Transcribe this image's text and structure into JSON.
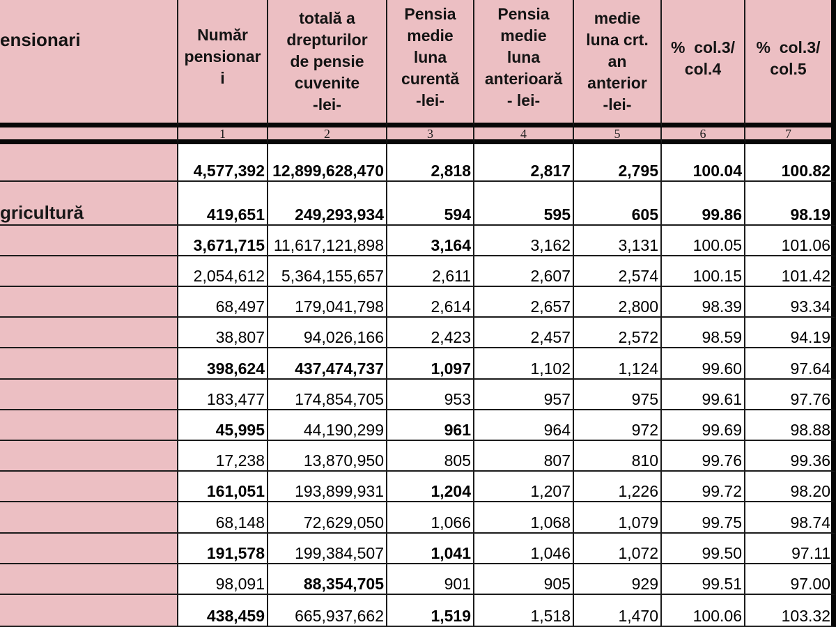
{
  "colors": {
    "header_pink": "#ecbfc3",
    "grid_line": "#1b1b1b",
    "thick_border": "#070707",
    "cell_white": "#ffffff"
  },
  "table": {
    "header": {
      "stub": "ensionari",
      "columns": [
        {
          "label": "Număr\npensionar\ni"
        },
        {
          "label": "totală a\ndrepturilor\nde pensie\ncuvenite\n-lei-"
        },
        {
          "label": "Pensia\nmedie\nluna\ncurentă\n-lei-"
        },
        {
          "label": "Pensia\nmedie\nluna\nanterioară\n- lei-"
        },
        {
          "label": "medie\nluna crt.\nan\nanterior\n-lei-"
        },
        {
          "label": "%  col.3/\ncol.4"
        },
        {
          "label": "%  col.3/\ncol.5"
        }
      ],
      "column_numbers": [
        "1",
        "2",
        "3",
        "4",
        "5",
        "6",
        "7"
      ]
    },
    "rows": [
      {
        "label": "",
        "cells": [
          {
            "v": "4,577,392",
            "b": true
          },
          {
            "v": "12,899,628,470",
            "b": true
          },
          {
            "v": "2,818",
            "b": true
          },
          {
            "v": "2,817",
            "b": true
          },
          {
            "v": "2,795",
            "b": true
          },
          {
            "v": "100.04",
            "b": true
          },
          {
            "v": "100.82",
            "b": true
          }
        ]
      },
      {
        "label": "gricultură",
        "cells": [
          {
            "v": "419,651",
            "b": true
          },
          {
            "v": "249,293,934",
            "b": true
          },
          {
            "v": "594",
            "b": true
          },
          {
            "v": "595",
            "b": true
          },
          {
            "v": "605",
            "b": true
          },
          {
            "v": "99.86",
            "b": true
          },
          {
            "v": "98.19",
            "b": true
          }
        ]
      },
      {
        "label": "",
        "cells": [
          {
            "v": "3,671,715",
            "b": true
          },
          {
            "v": "11,617,121,898",
            "b": false
          },
          {
            "v": "3,164",
            "b": true
          },
          {
            "v": "3,162",
            "b": false
          },
          {
            "v": "3,131",
            "b": false
          },
          {
            "v": "100.05",
            "b": false
          },
          {
            "v": "101.06",
            "b": false
          }
        ]
      },
      {
        "label": "",
        "cells": [
          {
            "v": "2,054,612",
            "b": false
          },
          {
            "v": "5,364,155,657",
            "b": false
          },
          {
            "v": "2,611",
            "b": false
          },
          {
            "v": "2,607",
            "b": false
          },
          {
            "v": "2,574",
            "b": false
          },
          {
            "v": "100.15",
            "b": false
          },
          {
            "v": "101.42",
            "b": false
          }
        ]
      },
      {
        "label": "",
        "cells": [
          {
            "v": "68,497",
            "b": false
          },
          {
            "v": "179,041,798",
            "b": false
          },
          {
            "v": "2,614",
            "b": false
          },
          {
            "v": "2,657",
            "b": false
          },
          {
            "v": "2,800",
            "b": false
          },
          {
            "v": "98.39",
            "b": false
          },
          {
            "v": "93.34",
            "b": false
          }
        ]
      },
      {
        "label": "",
        "cells": [
          {
            "v": "38,807",
            "b": false
          },
          {
            "v": "94,026,166",
            "b": false
          },
          {
            "v": "2,423",
            "b": false
          },
          {
            "v": "2,457",
            "b": false
          },
          {
            "v": "2,572",
            "b": false
          },
          {
            "v": "98.59",
            "b": false
          },
          {
            "v": "94.19",
            "b": false
          }
        ]
      },
      {
        "label": "",
        "cells": [
          {
            "v": "398,624",
            "b": true
          },
          {
            "v": "437,474,737",
            "b": true
          },
          {
            "v": "1,097",
            "b": true
          },
          {
            "v": "1,102",
            "b": false
          },
          {
            "v": "1,124",
            "b": false
          },
          {
            "v": "99.60",
            "b": false
          },
          {
            "v": "97.64",
            "b": false
          }
        ]
      },
      {
        "label": "",
        "cells": [
          {
            "v": "183,477",
            "b": false
          },
          {
            "v": "174,854,705",
            "b": false
          },
          {
            "v": "953",
            "b": false
          },
          {
            "v": "957",
            "b": false
          },
          {
            "v": "975",
            "b": false
          },
          {
            "v": "99.61",
            "b": false
          },
          {
            "v": "97.76",
            "b": false
          }
        ]
      },
      {
        "label": "",
        "cells": [
          {
            "v": "45,995",
            "b": true
          },
          {
            "v": "44,190,299",
            "b": false
          },
          {
            "v": "961",
            "b": true
          },
          {
            "v": "964",
            "b": false
          },
          {
            "v": "972",
            "b": false
          },
          {
            "v": "99.69",
            "b": false
          },
          {
            "v": "98.88",
            "b": false
          }
        ]
      },
      {
        "label": "",
        "cells": [
          {
            "v": "17,238",
            "b": false
          },
          {
            "v": "13,870,950",
            "b": false
          },
          {
            "v": "805",
            "b": false
          },
          {
            "v": "807",
            "b": false
          },
          {
            "v": "810",
            "b": false
          },
          {
            "v": "99.76",
            "b": false
          },
          {
            "v": "99.36",
            "b": false
          }
        ]
      },
      {
        "label": "",
        "cells": [
          {
            "v": "161,051",
            "b": true
          },
          {
            "v": "193,899,931",
            "b": false
          },
          {
            "v": "1,204",
            "b": true
          },
          {
            "v": "1,207",
            "b": false
          },
          {
            "v": "1,226",
            "b": false
          },
          {
            "v": "99.72",
            "b": false
          },
          {
            "v": "98.20",
            "b": false
          }
        ]
      },
      {
        "label": "",
        "cells": [
          {
            "v": "68,148",
            "b": false
          },
          {
            "v": "72,629,050",
            "b": false
          },
          {
            "v": "1,066",
            "b": false
          },
          {
            "v": "1,068",
            "b": false
          },
          {
            "v": "1,079",
            "b": false
          },
          {
            "v": "99.75",
            "b": false
          },
          {
            "v": "98.74",
            "b": false
          }
        ]
      },
      {
        "label": "",
        "cells": [
          {
            "v": "191,578",
            "b": true
          },
          {
            "v": "199,384,507",
            "b": false
          },
          {
            "v": "1,041",
            "b": true
          },
          {
            "v": "1,046",
            "b": false
          },
          {
            "v": "1,072",
            "b": false
          },
          {
            "v": "99.50",
            "b": false
          },
          {
            "v": "97.11",
            "b": false
          }
        ]
      },
      {
        "label": "",
        "cells": [
          {
            "v": "98,091",
            "b": false
          },
          {
            "v": "88,354,705",
            "b": true
          },
          {
            "v": "901",
            "b": false
          },
          {
            "v": "905",
            "b": false
          },
          {
            "v": "929",
            "b": false
          },
          {
            "v": "99.51",
            "b": false
          },
          {
            "v": "97.00",
            "b": false
          }
        ]
      },
      {
        "label": "",
        "cells": [
          {
            "v": "438,459",
            "b": true
          },
          {
            "v": "665,937,662",
            "b": false
          },
          {
            "v": "1,519",
            "b": true
          },
          {
            "v": "1,518",
            "b": false
          },
          {
            "v": "1,470",
            "b": false
          },
          {
            "v": "100.06",
            "b": false
          },
          {
            "v": "103.32",
            "b": false
          }
        ]
      }
    ]
  }
}
